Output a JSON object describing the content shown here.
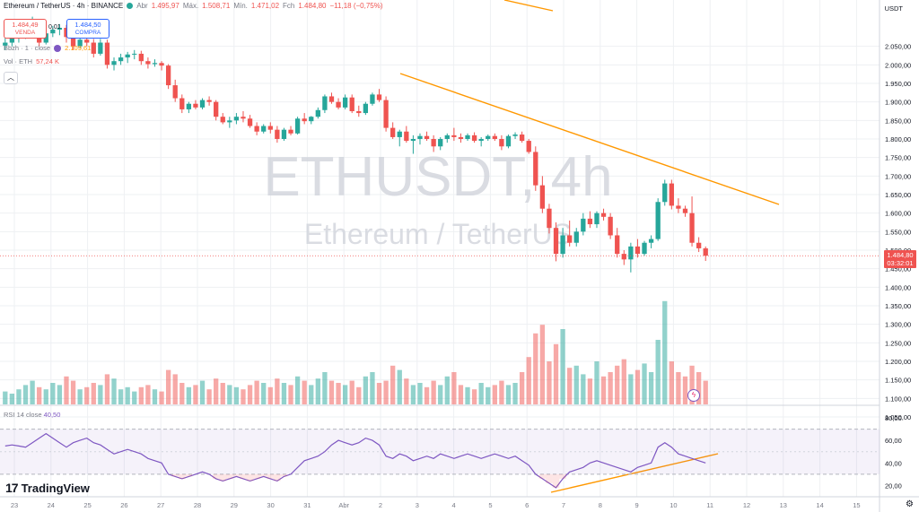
{
  "header": {
    "symbol_line": "Ethereum / TetherUS · 4h · BINANCE",
    "open_label": "Abr",
    "open_value": "1.495,97",
    "high_label": "Máx.",
    "high_value": "1.508,71",
    "low_label": "Mín.",
    "low_value": "1.471,02",
    "close_label": "Fch",
    "close_value": "1.484,80",
    "change": "−11,18 (−0,75%)"
  },
  "trade": {
    "sell_price": "1.484,49",
    "sell_label": "VENDA",
    "spread": "0,01",
    "buy_price": "1.484,50",
    "buy_label": "COMPRA"
  },
  "indicators": {
    "bb_label": "Bbzh · 1 · close",
    "bb_value": "2.109,61",
    "vol_label": "Vol · ETH",
    "vol_value": "57,24 K",
    "rsi_label": "RSI 14 close",
    "rsi_value": "40,50"
  },
  "collapse_icon": "chevron-up-icon",
  "watermark": {
    "ticker": "ETHUSDT, 4h",
    "name": "Ethereum / TetherUS"
  },
  "currency": "USDT",
  "last_price": {
    "value": "1.484,80",
    "countdown": "03:32:01"
  },
  "logo": {
    "text": "TradingView"
  },
  "colors": {
    "up": "#26a69a",
    "down": "#ef5350",
    "trendline": "#ff9800",
    "rsi": "#7e57c2",
    "accent": "#2962ff"
  },
  "chart_data": {
    "type": "candlestick",
    "price_axis": [
      "2.050,00",
      "2.000,00",
      "1.950,00",
      "1.900,00",
      "1.850,00",
      "1.800,00",
      "1.750,00",
      "1.700,00",
      "1.650,00",
      "1.600,00",
      "1.550,00",
      "1.500,00",
      "1.450,00",
      "1.400,00",
      "1.350,00",
      "1.300,00",
      "1.250,00",
      "1.200,00",
      "1.150,00",
      "1.100,00",
      "1.050,00"
    ],
    "price_axis_values": [
      2050,
      2000,
      1950,
      1900,
      1850,
      1800,
      1750,
      1700,
      1650,
      1600,
      1550,
      1500,
      1450,
      1400,
      1350,
      1300,
      1250,
      1200,
      1150,
      1100,
      1050
    ],
    "ylim": [
      1050,
      2100
    ],
    "rsi_axis": [
      "80,00",
      "60,00",
      "40,00",
      "20,00"
    ],
    "rsi_axis_values": [
      80,
      60,
      40,
      20
    ],
    "rsi_levels": [
      70,
      30
    ],
    "x_labels": [
      "23",
      "24",
      "25",
      "26",
      "27",
      "28",
      "29",
      "30",
      "31",
      "Abr",
      "2",
      "3",
      "4",
      "5",
      "6",
      "7",
      "8",
      "9",
      "10",
      "11",
      "12",
      "13",
      "14",
      "15"
    ],
    "candles": [
      [
        2052,
        2075,
        2040,
        2060
      ],
      [
        2060,
        2080,
        2050,
        2072
      ],
      [
        2072,
        2098,
        2060,
        2090
      ],
      [
        2090,
        2120,
        2070,
        2100
      ],
      [
        2100,
        2130,
        2085,
        2110
      ],
      [
        2110,
        2115,
        2050,
        2060
      ],
      [
        2060,
        2090,
        2055,
        2085
      ],
      [
        2085,
        2105,
        2075,
        2095
      ],
      [
        2095,
        2110,
        2080,
        2100
      ],
      [
        2100,
        2108,
        2060,
        2075
      ],
      [
        2075,
        2090,
        2040,
        2050
      ],
      [
        2050,
        2075,
        2045,
        2068
      ],
      [
        2068,
        2080,
        2050,
        2060
      ],
      [
        2060,
        2070,
        2020,
        2030
      ],
      [
        2030,
        2070,
        2025,
        2060
      ],
      [
        2060,
        2068,
        1990,
        2000
      ],
      [
        2000,
        2020,
        1985,
        2010
      ],
      [
        2010,
        2030,
        2000,
        2020
      ],
      [
        2020,
        2035,
        2005,
        2028
      ],
      [
        2028,
        2040,
        2015,
        2030
      ],
      [
        2030,
        2038,
        2000,
        2010
      ],
      [
        2010,
        2020,
        1990,
        2002
      ],
      [
        2002,
        2015,
        1995,
        2005
      ],
      [
        2005,
        2010,
        1985,
        1998
      ],
      [
        1998,
        2002,
        1935,
        1945
      ],
      [
        1945,
        1960,
        1900,
        1910
      ],
      [
        1910,
        1920,
        1870,
        1880
      ],
      [
        1880,
        1900,
        1870,
        1895
      ],
      [
        1895,
        1905,
        1880,
        1885
      ],
      [
        1885,
        1910,
        1880,
        1905
      ],
      [
        1905,
        1915,
        1890,
        1900
      ],
      [
        1900,
        1905,
        1850,
        1860
      ],
      [
        1860,
        1870,
        1840,
        1845
      ],
      [
        1845,
        1860,
        1830,
        1850
      ],
      [
        1850,
        1870,
        1840,
        1860
      ],
      [
        1860,
        1875,
        1845,
        1855
      ],
      [
        1855,
        1865,
        1830,
        1835
      ],
      [
        1835,
        1845,
        1810,
        1820
      ],
      [
        1820,
        1840,
        1815,
        1835
      ],
      [
        1835,
        1845,
        1815,
        1825
      ],
      [
        1825,
        1835,
        1790,
        1800
      ],
      [
        1800,
        1830,
        1795,
        1825
      ],
      [
        1825,
        1835,
        1810,
        1815
      ],
      [
        1815,
        1860,
        1812,
        1855
      ],
      [
        1855,
        1870,
        1840,
        1848
      ],
      [
        1848,
        1862,
        1840,
        1860
      ],
      [
        1860,
        1885,
        1855,
        1878
      ],
      [
        1878,
        1920,
        1870,
        1915
      ],
      [
        1915,
        1925,
        1895,
        1900
      ],
      [
        1900,
        1910,
        1880,
        1885
      ],
      [
        1885,
        1920,
        1880,
        1912
      ],
      [
        1912,
        1920,
        1870,
        1875
      ],
      [
        1875,
        1890,
        1860,
        1870
      ],
      [
        1870,
        1900,
        1865,
        1895
      ],
      [
        1895,
        1925,
        1890,
        1920
      ],
      [
        1920,
        1935,
        1900,
        1905
      ],
      [
        1905,
        1915,
        1820,
        1830
      ],
      [
        1830,
        1845,
        1800,
        1805
      ],
      [
        1805,
        1825,
        1780,
        1820
      ],
      [
        1820,
        1835,
        1790,
        1795
      ],
      [
        1795,
        1810,
        1760,
        1800
      ],
      [
        1800,
        1815,
        1785,
        1808
      ],
      [
        1808,
        1820,
        1795,
        1800
      ],
      [
        1800,
        1810,
        1765,
        1780
      ],
      [
        1780,
        1805,
        1770,
        1800
      ],
      [
        1800,
        1815,
        1790,
        1810
      ],
      [
        1810,
        1830,
        1795,
        1805
      ],
      [
        1805,
        1815,
        1790,
        1800
      ],
      [
        1800,
        1815,
        1795,
        1810
      ],
      [
        1810,
        1818,
        1790,
        1795
      ],
      [
        1795,
        1805,
        1780,
        1800
      ],
      [
        1800,
        1812,
        1795,
        1808
      ],
      [
        1808,
        1815,
        1795,
        1800
      ],
      [
        1800,
        1810,
        1770,
        1780
      ],
      [
        1780,
        1812,
        1775,
        1808
      ],
      [
        1808,
        1818,
        1800,
        1812
      ],
      [
        1812,
        1820,
        1790,
        1795
      ],
      [
        1795,
        1800,
        1760,
        1765
      ],
      [
        1765,
        1780,
        1660,
        1675
      ],
      [
        1675,
        1700,
        1600,
        1612
      ],
      [
        1612,
        1625,
        1545,
        1560
      ],
      [
        1560,
        1575,
        1470,
        1490
      ],
      [
        1490,
        1560,
        1480,
        1540
      ],
      [
        1540,
        1580,
        1510,
        1520
      ],
      [
        1520,
        1560,
        1510,
        1550
      ],
      [
        1550,
        1600,
        1540,
        1585
      ],
      [
        1585,
        1605,
        1560,
        1570
      ],
      [
        1570,
        1605,
        1560,
        1600
      ],
      [
        1600,
        1612,
        1580,
        1590
      ],
      [
        1590,
        1600,
        1530,
        1540
      ],
      [
        1540,
        1560,
        1480,
        1490
      ],
      [
        1490,
        1500,
        1460,
        1475
      ],
      [
        1475,
        1520,
        1440,
        1510
      ],
      [
        1510,
        1530,
        1480,
        1490
      ],
      [
        1490,
        1525,
        1485,
        1520
      ],
      [
        1520,
        1540,
        1505,
        1530
      ],
      [
        1530,
        1640,
        1525,
        1630
      ],
      [
        1630,
        1690,
        1620,
        1680
      ],
      [
        1680,
        1690,
        1610,
        1620
      ],
      [
        1620,
        1640,
        1600,
        1612
      ],
      [
        1612,
        1620,
        1590,
        1600
      ],
      [
        1600,
        1645,
        1510,
        1520
      ],
      [
        1520,
        1535,
        1495,
        1505
      ],
      [
        1505,
        1510,
        1471,
        1485
      ]
    ],
    "volume": [
      12,
      10,
      14,
      18,
      22,
      16,
      14,
      20,
      18,
      26,
      22,
      14,
      16,
      20,
      18,
      28,
      24,
      14,
      16,
      12,
      16,
      18,
      14,
      12,
      32,
      28,
      20,
      16,
      18,
      22,
      14,
      24,
      20,
      18,
      16,
      14,
      18,
      22,
      20,
      16,
      24,
      20,
      18,
      26,
      22,
      18,
      24,
      30,
      22,
      20,
      18,
      22,
      16,
      26,
      30,
      20,
      22,
      36,
      32,
      24,
      18,
      20,
      16,
      22,
      18,
      26,
      30,
      18,
      16,
      14,
      20,
      16,
      18,
      22,
      18,
      20,
      30,
      44,
      66,
      74,
      40,
      56,
      70,
      34,
      36,
      28,
      24,
      40,
      26,
      30,
      36,
      42,
      28,
      32,
      38,
      30,
      60,
      96,
      40,
      30,
      26,
      36,
      30,
      22
    ],
    "volume_ylim": [
      0,
      100
    ],
    "rsi": [
      55,
      56,
      55,
      54,
      58,
      62,
      66,
      62,
      58,
      54,
      58,
      60,
      62,
      58,
      56,
      52,
      48,
      50,
      52,
      50,
      48,
      44,
      42,
      40,
      30,
      28,
      26,
      28,
      30,
      32,
      30,
      26,
      24,
      26,
      28,
      26,
      24,
      26,
      28,
      26,
      24,
      28,
      30,
      36,
      42,
      44,
      46,
      50,
      56,
      60,
      58,
      56,
      58,
      62,
      60,
      56,
      46,
      44,
      48,
      46,
      42,
      44,
      46,
      44,
      48,
      46,
      44,
      46,
      48,
      46,
      44,
      46,
      48,
      46,
      44,
      46,
      42,
      38,
      30,
      26,
      22,
      18,
      26,
      32,
      34,
      36,
      40,
      42,
      40,
      38,
      36,
      34,
      32,
      36,
      38,
      40,
      54,
      58,
      54,
      48,
      46,
      44,
      42,
      40
    ],
    "trendline_price": [
      [
        446,
        82
      ],
      [
        868,
        228
      ]
    ],
    "trendline_top": [
      [
        562,
        0
      ],
      [
        616,
        12
      ]
    ],
    "trendline_rsi": [
      [
        614,
        549
      ],
      [
        800,
        506
      ]
    ]
  }
}
